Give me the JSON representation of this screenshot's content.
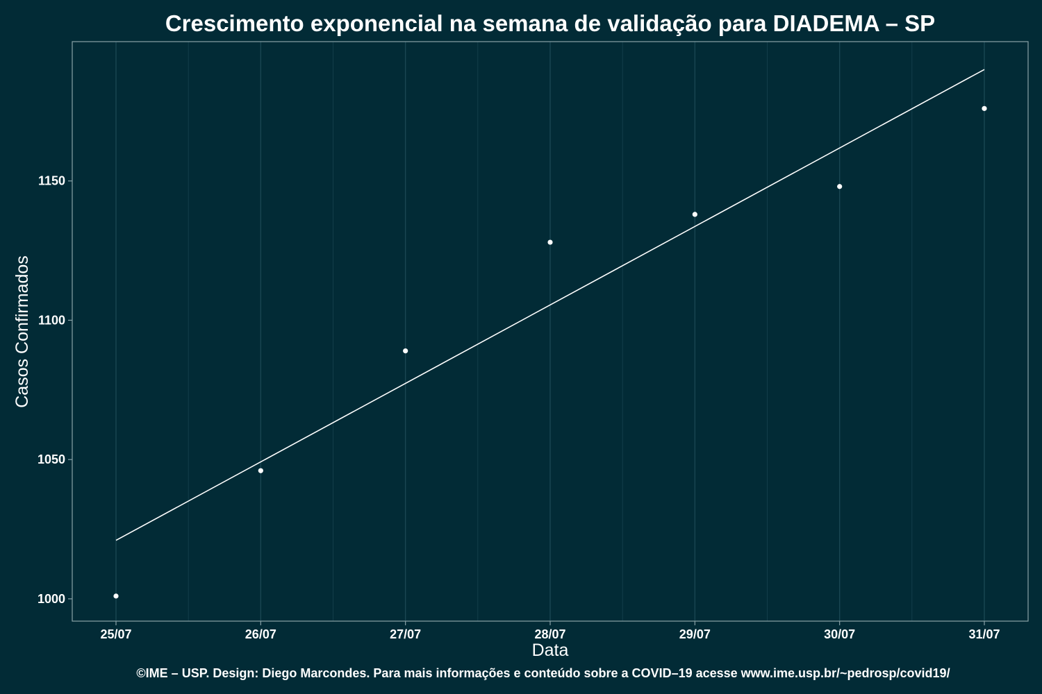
{
  "chart_data": {
    "type": "scatter",
    "title": "Crescimento exponencial na semana de validação para DIADEMA – SP",
    "xlabel": "Data",
    "ylabel": "Casos Confirmados",
    "caption": "©IME – USP. Design: Diego Marcondes. Para mais informações e conteúdo sobre a COVID–19 acesse www.ime.usp.br/~pedrosp/covid19/",
    "categories": [
      "25/07",
      "26/07",
      "27/07",
      "28/07",
      "29/07",
      "30/07",
      "31/07"
    ],
    "values": [
      1001,
      1046,
      1089,
      1128,
      1138,
      1148,
      1176
    ],
    "fit": {
      "start": 1021,
      "end": 1190
    },
    "yticks": [
      1000,
      1050,
      1100,
      1150
    ],
    "ylim": [
      992,
      1200
    ],
    "grid": true,
    "colors": {
      "background": "#022b36",
      "grid": "#1a4652",
      "border": "#8aa3a8",
      "points": "#ffffff",
      "fit_line": "#ffffff"
    }
  }
}
